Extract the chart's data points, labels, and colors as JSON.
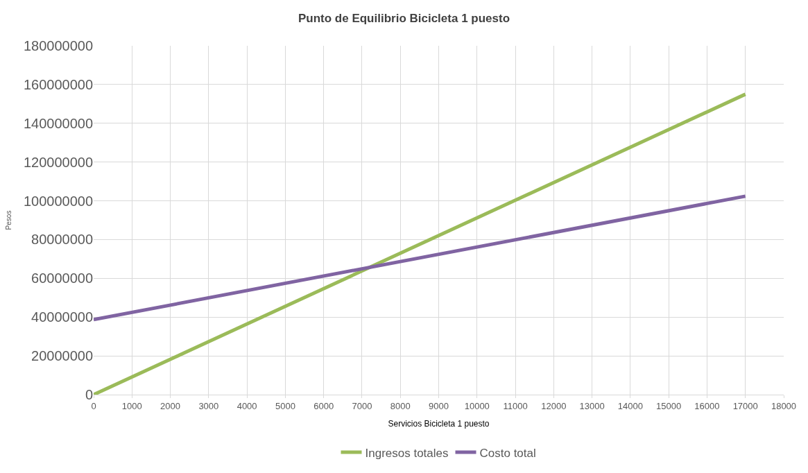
{
  "chart_data": {
    "type": "line",
    "title": "Punto de Equilibrio Bicicleta 1 puesto",
    "xlabel": "Servicios Bicicleta 1 puesto",
    "ylabel": "Pesos",
    "x": [
      0,
      17000
    ],
    "series": [
      {
        "name": "Ingresos totales",
        "color": "#9bbb59",
        "values": [
          0,
          155000000
        ]
      },
      {
        "name": "Costo total",
        "color": "#8064a2",
        "values": [
          38700000,
          102400000
        ]
      }
    ],
    "xlim": [
      0,
      18000
    ],
    "xticks": [
      0,
      1000,
      2000,
      3000,
      4000,
      5000,
      6000,
      7000,
      8000,
      9000,
      10000,
      11000,
      12000,
      13000,
      14000,
      15000,
      16000,
      17000,
      18000
    ],
    "ylim": [
      0,
      180000000
    ],
    "yticks": [
      0,
      20000000,
      40000000,
      60000000,
      80000000,
      100000000,
      120000000,
      140000000,
      160000000,
      180000000
    ],
    "grid": true,
    "legend": "bottom",
    "marker": "none",
    "line_style": "solid"
  }
}
